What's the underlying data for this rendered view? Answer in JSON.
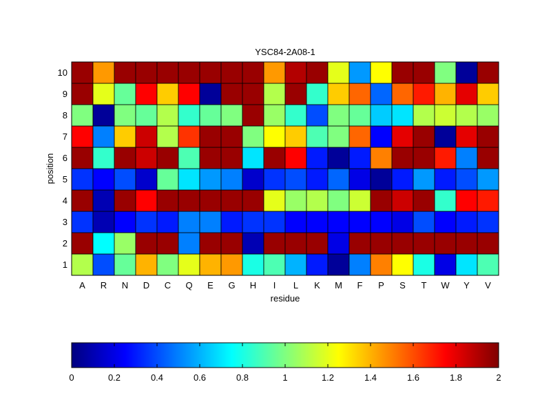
{
  "chart_data": [
    {
      "type": "heatmap",
      "title": "YSC84-2A08-1",
      "xlabel": "residue",
      "ylabel": "position",
      "x_categories": [
        "A",
        "R",
        "N",
        "D",
        "C",
        "Q",
        "E",
        "G",
        "H",
        "I",
        "L",
        "K",
        "M",
        "F",
        "P",
        "S",
        "T",
        "W",
        "Y",
        "V"
      ],
      "y_categories": [
        "1",
        "2",
        "3",
        "4",
        "5",
        "6",
        "7",
        "8",
        "9",
        "10"
      ],
      "value_range": [
        0,
        2
      ],
      "colormap": "jet",
      "values": [
        [
          1.1,
          0.4,
          0.95,
          1.4,
          1.0,
          1.2,
          1.4,
          1.45,
          0.8,
          0.9,
          0.6,
          0.3,
          0.05,
          0.5,
          1.5,
          1.25,
          0.8,
          0.2,
          0.7,
          0.9
        ],
        [
          1.95,
          0.75,
          1.05,
          1.95,
          1.95,
          0.5,
          1.95,
          1.95,
          0.1,
          1.95,
          1.95,
          1.95,
          0.2,
          1.95,
          1.95,
          1.95,
          1.95,
          1.95,
          1.95,
          1.95
        ],
        [
          0.35,
          0.1,
          0.25,
          0.35,
          0.3,
          0.5,
          0.5,
          0.3,
          0.35,
          0.35,
          0.25,
          0.25,
          0.25,
          0.25,
          0.25,
          0.2,
          0.4,
          0.25,
          0.3,
          0.35
        ],
        [
          1.95,
          0.1,
          1.95,
          1.75,
          1.95,
          1.95,
          1.95,
          1.95,
          1.95,
          1.2,
          1.05,
          1.1,
          1.0,
          1.15,
          1.95,
          1.85,
          1.95,
          0.85,
          1.75,
          1.7
        ],
        [
          0.35,
          0.25,
          0.4,
          0.15,
          0.95,
          0.7,
          0.55,
          0.5,
          0.15,
          0.35,
          0.4,
          0.3,
          0.45,
          0.2,
          0.05,
          0.3,
          0.55,
          0.3,
          0.4,
          0.55
        ],
        [
          1.95,
          0.85,
          1.95,
          1.85,
          1.95,
          0.9,
          1.95,
          1.95,
          0.7,
          1.95,
          1.75,
          0.3,
          0.05,
          0.3,
          1.5,
          1.95,
          1.95,
          1.7,
          0.5,
          1.95
        ],
        [
          1.75,
          0.5,
          1.35,
          1.85,
          1.1,
          1.65,
          1.95,
          1.95,
          1.0,
          1.25,
          1.35,
          0.9,
          1.0,
          1.55,
          0.25,
          1.8,
          1.95,
          0.05,
          1.8,
          1.95
        ],
        [
          1.0,
          0.05,
          1.0,
          0.95,
          1.1,
          0.85,
          0.95,
          1.0,
          1.95,
          1.05,
          0.85,
          0.4,
          1.0,
          0.95,
          0.65,
          0.7,
          1.1,
          1.15,
          1.1,
          1.05
        ],
        [
          1.95,
          1.2,
          0.95,
          1.75,
          1.35,
          1.75,
          0.05,
          1.95,
          1.95,
          1.1,
          1.95,
          0.85,
          1.35,
          1.55,
          0.45,
          1.55,
          1.7,
          1.4,
          1.8,
          1.35
        ],
        [
          1.95,
          1.45,
          1.95,
          1.95,
          1.95,
          1.95,
          1.95,
          1.95,
          1.95,
          1.45,
          1.9,
          1.95,
          1.2,
          0.55,
          1.25,
          1.95,
          1.95,
          1.0,
          0.05,
          1.95
        ]
      ]
    },
    {
      "type": "colorbar",
      "ticks": [
        "0",
        "0.2",
        "0.4",
        "0.6",
        "0.8",
        "1",
        "1.2",
        "1.4",
        "1.6",
        "1.8",
        "2"
      ],
      "range": [
        0,
        2
      ]
    }
  ]
}
